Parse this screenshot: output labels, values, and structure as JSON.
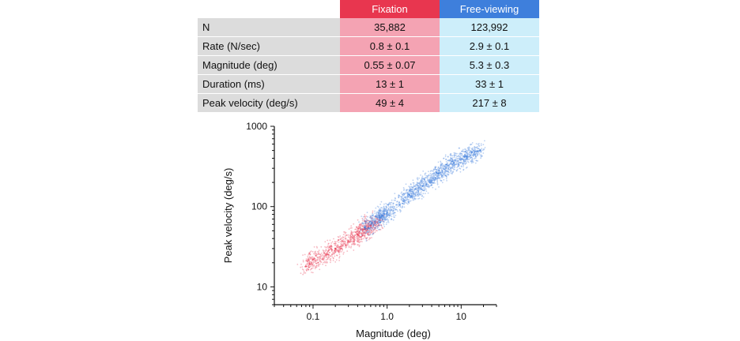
{
  "table": {
    "columns": [
      "",
      "Fixation",
      "Free-viewing"
    ],
    "column_colors": {
      "fixation_header": "#e8364f",
      "free_header": "#3e7fdc",
      "fixation_cells": "#f4a3b3",
      "free_cells": "#cdeefa",
      "label_cells": "#dcdcdc"
    },
    "rows": [
      {
        "label": "N",
        "fixation": "35,882",
        "free": "123,992"
      },
      {
        "label": "Rate (N/sec)",
        "fixation": "0.8 ± 0.1",
        "free": "2.9 ± 0.1"
      },
      {
        "label": "Magnitude (deg)",
        "fixation": "0.55 ± 0.07",
        "free": "5.3 ± 0.3"
      },
      {
        "label": "Duration (ms)",
        "fixation": "13 ± 1",
        "free": "33 ± 1"
      },
      {
        "label": "Peak velocity (deg/s)",
        "fixation": "49 ± 4",
        "free": "217 ± 8"
      }
    ]
  },
  "chart_data": {
    "type": "scatter",
    "xlabel": "Magnitude (deg)",
    "ylabel": "Peak velocity (deg/s)",
    "x_scale": "log",
    "y_scale": "log",
    "xlim": [
      0.03,
      30
    ],
    "ylim": [
      6,
      1000
    ],
    "x_ticks": [
      "0.1",
      "1.0",
      "10"
    ],
    "y_ticks": [
      "10",
      "100",
      "1000"
    ],
    "grid": false,
    "series": [
      {
        "color": "#e8364f",
        "points": [
          [
            0.08,
            18
          ],
          [
            0.1,
            22
          ],
          [
            0.15,
            25
          ],
          [
            0.2,
            30
          ],
          [
            0.3,
            37
          ],
          [
            0.4,
            45
          ],
          [
            0.5,
            52
          ],
          [
            0.6,
            58
          ],
          [
            0.8,
            68
          ]
        ]
      },
      {
        "color": "#3e7fdc",
        "points": [
          [
            0.5,
            55
          ],
          [
            0.8,
            72
          ],
          [
            1.0,
            85
          ],
          [
            2.0,
            140
          ],
          [
            3.0,
            180
          ],
          [
            5.0,
            260
          ],
          [
            8.0,
            350
          ],
          [
            12.0,
            420
          ],
          [
            18.0,
            500
          ]
        ]
      }
    ]
  }
}
